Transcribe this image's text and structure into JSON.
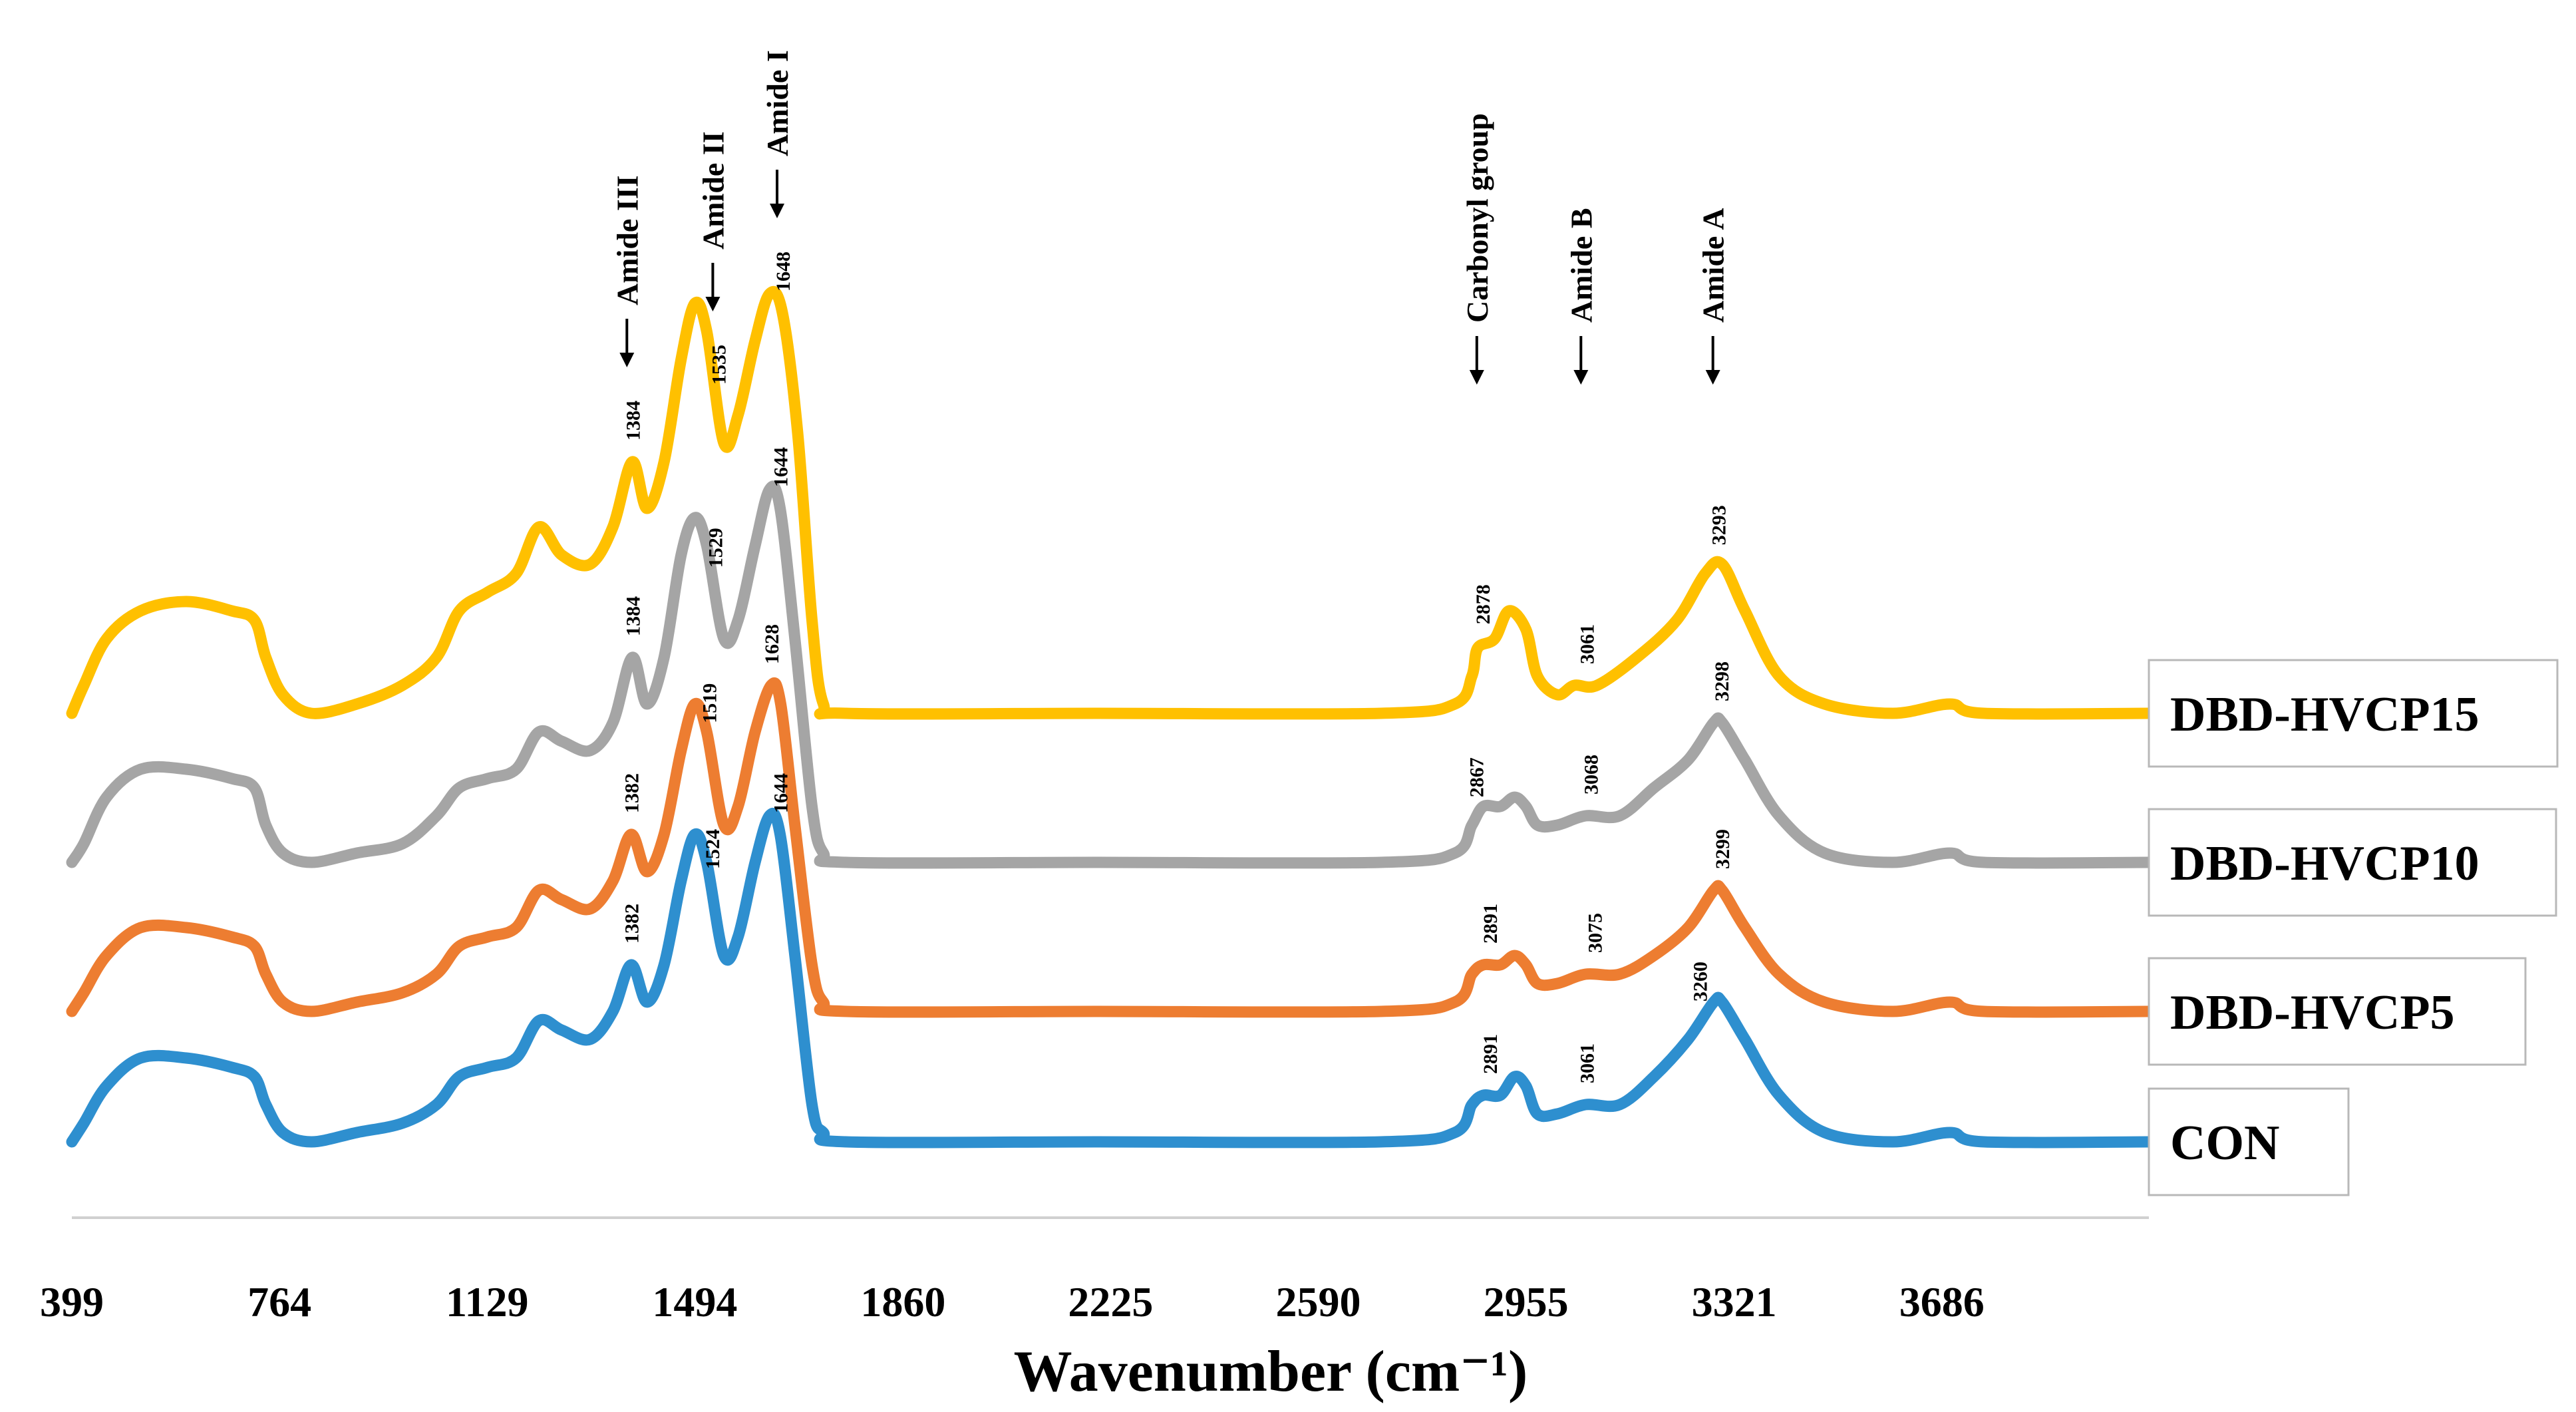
{
  "chart_data": {
    "type": "line",
    "title": "",
    "xlabel": "Wavenumber (cm⁻¹)",
    "ylabel": "",
    "xlim": [
      399,
      4050
    ],
    "x_ticks": [
      "399",
      "764",
      "1129",
      "1494",
      "1860",
      "2225",
      "2590",
      "2955",
      "3321",
      "3686"
    ],
    "grid": false,
    "legend_position": "right",
    "region_labels": [
      {
        "name": "Amide III",
        "x": 1384
      },
      {
        "name": "Amide II",
        "x": 1535
      },
      {
        "name": "Amide I",
        "x": 1648
      },
      {
        "name": "Carbonyl group",
        "x": 2878
      },
      {
        "name": "Amide B",
        "x": 3061
      },
      {
        "name": "Amide A",
        "x": 3293
      }
    ],
    "series": [
      {
        "name": "DBD-HVCP15",
        "color": "#FFC000",
        "baseline": 0.52,
        "peaks": [
          {
            "x": 1384,
            "label": "1384"
          },
          {
            "x": 1535,
            "label": "1535"
          },
          {
            "x": 1648,
            "label": "1648"
          },
          {
            "x": 2878,
            "label": "2878"
          },
          {
            "x": 3061,
            "label": "3061"
          },
          {
            "x": 3293,
            "label": "3293"
          }
        ],
        "points": [
          [
            399,
            0.52
          ],
          [
            420,
            0.55
          ],
          [
            460,
            0.6
          ],
          [
            520,
            0.63
          ],
          [
            600,
            0.64
          ],
          [
            680,
            0.63
          ],
          [
            720,
            0.62
          ],
          [
            740,
            0.58
          ],
          [
            770,
            0.54
          ],
          [
            820,
            0.52
          ],
          [
            900,
            0.53
          ],
          [
            980,
            0.55
          ],
          [
            1040,
            0.58
          ],
          [
            1080,
            0.63
          ],
          [
            1130,
            0.65
          ],
          [
            1180,
            0.67
          ],
          [
            1220,
            0.72
          ],
          [
            1260,
            0.69
          ],
          [
            1310,
            0.68
          ],
          [
            1350,
            0.72
          ],
          [
            1384,
            0.79
          ],
          [
            1410,
            0.74
          ],
          [
            1440,
            0.79
          ],
          [
            1470,
            0.9
          ],
          [
            1494,
            0.96
          ],
          [
            1515,
            0.93
          ],
          [
            1545,
            0.81
          ],
          [
            1570,
            0.84
          ],
          [
            1600,
            0.92
          ],
          [
            1625,
            0.97
          ],
          [
            1648,
            0.95
          ],
          [
            1675,
            0.82
          ],
          [
            1700,
            0.62
          ],
          [
            1720,
            0.53
          ],
          [
            1760,
            0.52
          ],
          [
            2200,
            0.52
          ],
          [
            2700,
            0.52
          ],
          [
            2830,
            0.53
          ],
          [
            2860,
            0.56
          ],
          [
            2870,
            0.59
          ],
          [
            2900,
            0.6
          ],
          [
            2925,
            0.63
          ],
          [
            2955,
            0.61
          ],
          [
            2975,
            0.56
          ],
          [
            3010,
            0.54
          ],
          [
            3040,
            0.55
          ],
          [
            3080,
            0.55
          ],
          [
            3150,
            0.58
          ],
          [
            3220,
            0.62
          ],
          [
            3270,
            0.67
          ],
          [
            3300,
            0.68
          ],
          [
            3340,
            0.63
          ],
          [
            3400,
            0.56
          ],
          [
            3480,
            0.53
          ],
          [
            3600,
            0.52
          ],
          [
            3700,
            0.53
          ],
          [
            3760,
            0.52
          ],
          [
            4050,
            0.52
          ]
        ]
      },
      {
        "name": "DBD-HVCP10",
        "color": "#A5A5A5",
        "baseline": 0.36,
        "peaks": [
          {
            "x": 1384,
            "label": "1384"
          },
          {
            "x": 1529,
            "label": "1529"
          },
          {
            "x": 1644,
            "label": "1644"
          },
          {
            "x": 2867,
            "label": "2867"
          },
          {
            "x": 3068,
            "label": "3068"
          },
          {
            "x": 3298,
            "label": "3298"
          }
        ],
        "points": [
          [
            399,
            0.36
          ],
          [
            420,
            0.38
          ],
          [
            460,
            0.43
          ],
          [
            520,
            0.46
          ],
          [
            600,
            0.46
          ],
          [
            680,
            0.45
          ],
          [
            720,
            0.44
          ],
          [
            740,
            0.4
          ],
          [
            770,
            0.37
          ],
          [
            820,
            0.36
          ],
          [
            900,
            0.37
          ],
          [
            980,
            0.38
          ],
          [
            1040,
            0.41
          ],
          [
            1080,
            0.44
          ],
          [
            1130,
            0.45
          ],
          [
            1180,
            0.46
          ],
          [
            1220,
            0.5
          ],
          [
            1260,
            0.49
          ],
          [
            1310,
            0.48
          ],
          [
            1350,
            0.51
          ],
          [
            1384,
            0.58
          ],
          [
            1410,
            0.53
          ],
          [
            1440,
            0.58
          ],
          [
            1470,
            0.69
          ],
          [
            1494,
            0.73
          ],
          [
            1515,
            0.7
          ],
          [
            1545,
            0.6
          ],
          [
            1570,
            0.62
          ],
          [
            1600,
            0.7
          ],
          [
            1625,
            0.76
          ],
          [
            1644,
            0.74
          ],
          [
            1670,
            0.6
          ],
          [
            1700,
            0.42
          ],
          [
            1720,
            0.37
          ],
          [
            1760,
            0.36
          ],
          [
            2200,
            0.36
          ],
          [
            2700,
            0.36
          ],
          [
            2830,
            0.37
          ],
          [
            2860,
            0.4
          ],
          [
            2880,
            0.42
          ],
          [
            2910,
            0.42
          ],
          [
            2935,
            0.43
          ],
          [
            2955,
            0.42
          ],
          [
            2975,
            0.4
          ],
          [
            3010,
            0.4
          ],
          [
            3060,
            0.41
          ],
          [
            3120,
            0.41
          ],
          [
            3180,
            0.44
          ],
          [
            3240,
            0.47
          ],
          [
            3285,
            0.51
          ],
          [
            3300,
            0.51
          ],
          [
            3340,
            0.47
          ],
          [
            3400,
            0.41
          ],
          [
            3480,
            0.37
          ],
          [
            3600,
            0.36
          ],
          [
            3700,
            0.37
          ],
          [
            3760,
            0.36
          ],
          [
            4050,
            0.36
          ]
        ]
      },
      {
        "name": "DBD-HVCP5",
        "color": "#ED7D31",
        "baseline": 0.2,
        "peaks": [
          {
            "x": 1382,
            "label": "1382"
          },
          {
            "x": 1519,
            "label": "1519"
          },
          {
            "x": 1628,
            "label": "1628"
          },
          {
            "x": 2891,
            "label": "2891"
          },
          {
            "x": 3075,
            "label": "3075"
          },
          {
            "x": 3299,
            "label": "3299"
          }
        ],
        "points": [
          [
            399,
            0.2
          ],
          [
            420,
            0.22
          ],
          [
            460,
            0.26
          ],
          [
            520,
            0.29
          ],
          [
            600,
            0.29
          ],
          [
            680,
            0.28
          ],
          [
            720,
            0.27
          ],
          [
            740,
            0.24
          ],
          [
            770,
            0.21
          ],
          [
            820,
            0.2
          ],
          [
            900,
            0.21
          ],
          [
            980,
            0.22
          ],
          [
            1040,
            0.24
          ],
          [
            1080,
            0.27
          ],
          [
            1130,
            0.28
          ],
          [
            1180,
            0.29
          ],
          [
            1220,
            0.33
          ],
          [
            1260,
            0.32
          ],
          [
            1310,
            0.31
          ],
          [
            1350,
            0.34
          ],
          [
            1382,
            0.39
          ],
          [
            1410,
            0.35
          ],
          [
            1440,
            0.39
          ],
          [
            1470,
            0.48
          ],
          [
            1494,
            0.53
          ],
          [
            1515,
            0.5
          ],
          [
            1545,
            0.4
          ],
          [
            1570,
            0.42
          ],
          [
            1600,
            0.5
          ],
          [
            1628,
            0.55
          ],
          [
            1645,
            0.53
          ],
          [
            1670,
            0.4
          ],
          [
            1700,
            0.25
          ],
          [
            1720,
            0.21
          ],
          [
            1760,
            0.2
          ],
          [
            2200,
            0.2
          ],
          [
            2700,
            0.2
          ],
          [
            2830,
            0.21
          ],
          [
            2860,
            0.24
          ],
          [
            2880,
            0.25
          ],
          [
            2910,
            0.25
          ],
          [
            2935,
            0.26
          ],
          [
            2955,
            0.25
          ],
          [
            2975,
            0.23
          ],
          [
            3010,
            0.23
          ],
          [
            3060,
            0.24
          ],
          [
            3120,
            0.24
          ],
          [
            3180,
            0.26
          ],
          [
            3240,
            0.29
          ],
          [
            3285,
            0.33
          ],
          [
            3300,
            0.33
          ],
          [
            3340,
            0.29
          ],
          [
            3400,
            0.24
          ],
          [
            3480,
            0.21
          ],
          [
            3600,
            0.2
          ],
          [
            3700,
            0.21
          ],
          [
            3760,
            0.2
          ],
          [
            4050,
            0.2
          ]
        ]
      },
      {
        "name": "CON",
        "color": "#2E8FCF",
        "baseline": 0.06,
        "peaks": [
          {
            "x": 1382,
            "label": "1382"
          },
          {
            "x": 1524,
            "label": "1524"
          },
          {
            "x": 1644,
            "label": "1644"
          },
          {
            "x": 2891,
            "label": "2891"
          },
          {
            "x": 3061,
            "label": "3061"
          },
          {
            "x": 3260,
            "label": "3260"
          }
        ],
        "points": [
          [
            399,
            0.06
          ],
          [
            420,
            0.08
          ],
          [
            460,
            0.12
          ],
          [
            520,
            0.15
          ],
          [
            600,
            0.15
          ],
          [
            680,
            0.14
          ],
          [
            720,
            0.13
          ],
          [
            740,
            0.1
          ],
          [
            770,
            0.07
          ],
          [
            820,
            0.06
          ],
          [
            900,
            0.07
          ],
          [
            980,
            0.08
          ],
          [
            1040,
            0.1
          ],
          [
            1080,
            0.13
          ],
          [
            1130,
            0.14
          ],
          [
            1180,
            0.15
          ],
          [
            1220,
            0.19
          ],
          [
            1260,
            0.18
          ],
          [
            1310,
            0.17
          ],
          [
            1350,
            0.2
          ],
          [
            1382,
            0.25
          ],
          [
            1410,
            0.21
          ],
          [
            1440,
            0.25
          ],
          [
            1470,
            0.34
          ],
          [
            1494,
            0.39
          ],
          [
            1515,
            0.36
          ],
          [
            1545,
            0.26
          ],
          [
            1570,
            0.28
          ],
          [
            1600,
            0.36
          ],
          [
            1625,
            0.41
          ],
          [
            1644,
            0.39
          ],
          [
            1670,
            0.26
          ],
          [
            1700,
            0.1
          ],
          [
            1720,
            0.07
          ],
          [
            1760,
            0.06
          ],
          [
            2200,
            0.06
          ],
          [
            2700,
            0.06
          ],
          [
            2830,
            0.07
          ],
          [
            2860,
            0.1
          ],
          [
            2880,
            0.11
          ],
          [
            2910,
            0.11
          ],
          [
            2935,
            0.13
          ],
          [
            2955,
            0.12
          ],
          [
            2975,
            0.09
          ],
          [
            3010,
            0.09
          ],
          [
            3060,
            0.1
          ],
          [
            3120,
            0.1
          ],
          [
            3180,
            0.13
          ],
          [
            3240,
            0.17
          ],
          [
            3285,
            0.21
          ],
          [
            3300,
            0.21
          ],
          [
            3340,
            0.17
          ],
          [
            3400,
            0.11
          ],
          [
            3480,
            0.07
          ],
          [
            3600,
            0.06
          ],
          [
            3700,
            0.07
          ],
          [
            3760,
            0.06
          ],
          [
            4050,
            0.06
          ]
        ]
      }
    ]
  }
}
